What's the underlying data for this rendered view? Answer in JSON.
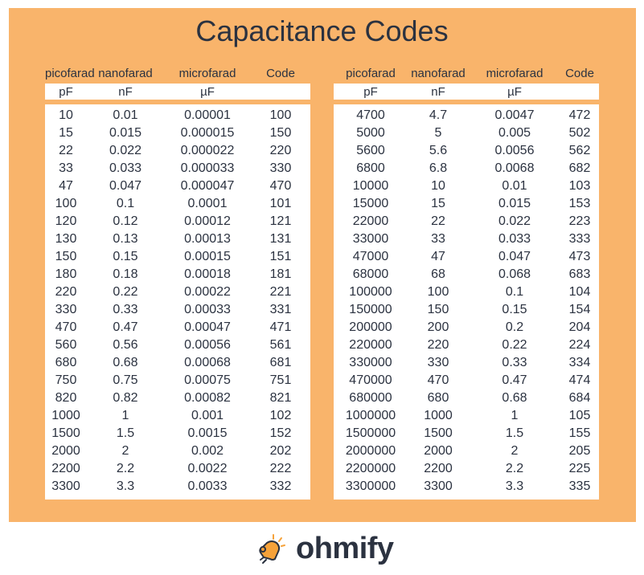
{
  "title": "Capacitance Codes",
  "headers": [
    "picofarad",
    "nanofarad",
    "microfarad",
    "Code"
  ],
  "units": [
    "pF",
    "nF",
    "µF",
    ""
  ],
  "left_rows": [
    [
      "10",
      "0.01",
      "0.00001",
      "100"
    ],
    [
      "15",
      "0.015",
      "0.000015",
      "150"
    ],
    [
      "22",
      "0.022",
      "0.000022",
      "220"
    ],
    [
      "33",
      "0.033",
      "0.000033",
      "330"
    ],
    [
      "47",
      "0.047",
      "0.000047",
      "470"
    ],
    [
      "100",
      "0.1",
      "0.0001",
      "101"
    ],
    [
      "120",
      "0.12",
      "0.00012",
      "121"
    ],
    [
      "130",
      "0.13",
      "0.00013",
      "131"
    ],
    [
      "150",
      "0.15",
      "0.00015",
      "151"
    ],
    [
      "180",
      "0.18",
      "0.00018",
      "181"
    ],
    [
      "220",
      "0.22",
      "0.00022",
      "221"
    ],
    [
      "330",
      "0.33",
      "0.00033",
      "331"
    ],
    [
      "470",
      "0.47",
      "0.00047",
      "471"
    ],
    [
      "560",
      "0.56",
      "0.00056",
      "561"
    ],
    [
      "680",
      "0.68",
      "0.00068",
      "681"
    ],
    [
      "750",
      "0.75",
      "0.00075",
      "751"
    ],
    [
      "820",
      "0.82",
      "0.00082",
      "821"
    ],
    [
      "1000",
      "1",
      "0.001",
      "102"
    ],
    [
      "1500",
      "1.5",
      "0.0015",
      "152"
    ],
    [
      "2000",
      "2",
      "0.002",
      "202"
    ],
    [
      "2200",
      "2.2",
      "0.0022",
      "222"
    ],
    [
      "3300",
      "3.3",
      "0.0033",
      "332"
    ]
  ],
  "right_rows": [
    [
      "4700",
      "4.7",
      "0.0047",
      "472"
    ],
    [
      "5000",
      "5",
      "0.005",
      "502"
    ],
    [
      "5600",
      "5.6",
      "0.0056",
      "562"
    ],
    [
      "6800",
      "6.8",
      "0.0068",
      "682"
    ],
    [
      "10000",
      "10",
      "0.01",
      "103"
    ],
    [
      "15000",
      "15",
      "0.015",
      "153"
    ],
    [
      "22000",
      "22",
      "0.022",
      "223"
    ],
    [
      "33000",
      "33",
      "0.033",
      "333"
    ],
    [
      "47000",
      "47",
      "0.047",
      "473"
    ],
    [
      "68000",
      "68",
      "0.068",
      "683"
    ],
    [
      "100000",
      "100",
      "0.1",
      "104"
    ],
    [
      "150000",
      "150",
      "0.15",
      "154"
    ],
    [
      "200000",
      "200",
      "0.2",
      "204"
    ],
    [
      "220000",
      "220",
      "0.22",
      "224"
    ],
    [
      "330000",
      "330",
      "0.33",
      "334"
    ],
    [
      "470000",
      "470",
      "0.47",
      "474"
    ],
    [
      "680000",
      "680",
      "0.68",
      "684"
    ],
    [
      "1000000",
      "1000",
      "1",
      "105"
    ],
    [
      "1500000",
      "1500",
      "1.5",
      "155"
    ],
    [
      "2000000",
      "2000",
      "2",
      "205"
    ],
    [
      "2200000",
      "2200",
      "2.2",
      "225"
    ],
    [
      "3300000",
      "3300",
      "3.3",
      "335"
    ]
  ],
  "logo": {
    "text": "ohmify",
    "icon": "bell-icon"
  },
  "colors": {
    "background": "#f9b46b",
    "text": "#2b3240",
    "accent": "#f6a23a"
  }
}
